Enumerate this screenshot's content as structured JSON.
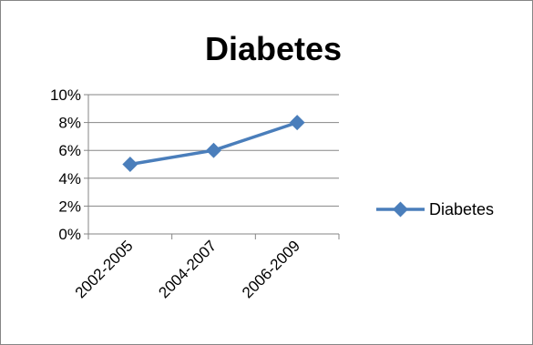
{
  "chart_data": {
    "type": "line",
    "title": "Diabetes",
    "xlabel": "",
    "ylabel": "",
    "categories": [
      "2002-2005",
      "2004-2007",
      "2006-2009"
    ],
    "series": [
      {
        "name": "Diabetes",
        "values": [
          0.05,
          0.06,
          0.08
        ],
        "color": "#4a7ebb",
        "marker": "diamond"
      }
    ],
    "ylim": [
      0,
      0.1
    ],
    "yticks": [
      "0%",
      "2%",
      "4%",
      "6%",
      "8%",
      "10%"
    ],
    "ytick_values": [
      0,
      0.02,
      0.04,
      0.06,
      0.08,
      0.1
    ],
    "grid": true,
    "legend": "right"
  }
}
